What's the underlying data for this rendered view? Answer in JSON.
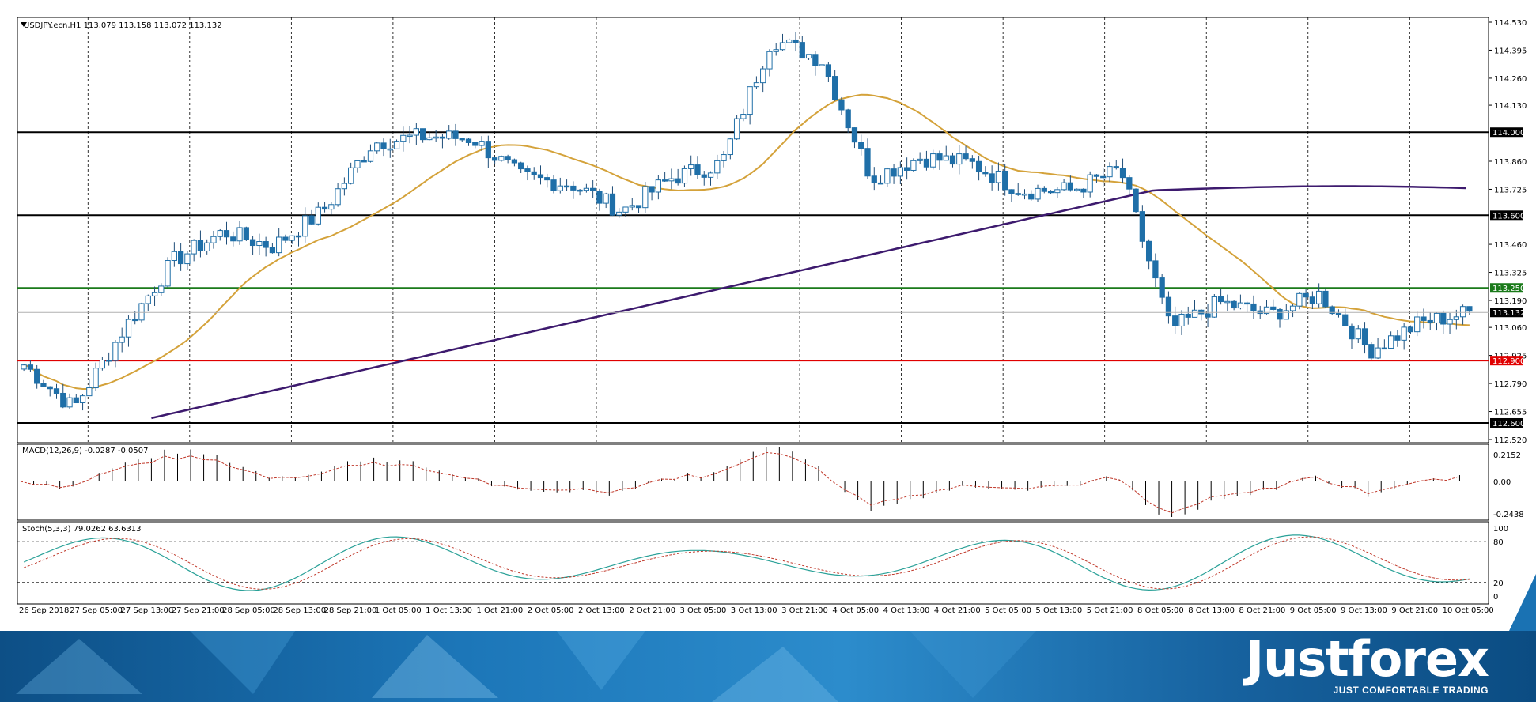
{
  "main_chart": {
    "title": "USDJPY.ecn,H1  113.079 113.158 113.072 113.132",
    "price_axis": [
      "114.530",
      "114.395",
      "114.260",
      "114.130",
      "113.860",
      "113.725",
      "113.460",
      "113.325",
      "113.190",
      "113.060",
      "112.925",
      "112.790",
      "112.655",
      "112.520"
    ],
    "levels": [
      {
        "value": 114.0,
        "label": "114.000",
        "color": "#000000"
      },
      {
        "value": 113.6,
        "label": "113.600",
        "color": "#000000"
      },
      {
        "value": 113.25,
        "label": "113.250",
        "color": "#1a7a1a"
      },
      {
        "value": 112.9,
        "label": "112.900",
        "color": "#e00000"
      },
      {
        "value": 112.6,
        "label": "112.600",
        "color": "#000000"
      }
    ],
    "current_price": {
      "value": 113.132,
      "label": "113.132"
    },
    "colors": {
      "bull": "#1f6fa8",
      "ma_fast": "#d4a23a",
      "ma_slow": "#3d1a6e",
      "grid": "#000000"
    }
  },
  "macd": {
    "title": "MACD(12,26,9) -0.0287 -0.0507",
    "axis": [
      "0.2152",
      "0.00",
      "-0.2438"
    ]
  },
  "stoch": {
    "title": "Stoch(5,3,3) 79.0262 63.6313",
    "axis": [
      "100",
      "80",
      "20",
      "0"
    ],
    "colors": {
      "main": "#2aa198",
      "signal": "#c0392b"
    }
  },
  "time_axis": [
    "26 Sep 2018",
    "27 Sep 05:00",
    "27 Sep 13:00",
    "27 Sep 21:00",
    "28 Sep 05:00",
    "28 Sep 13:00",
    "28 Sep 21:00",
    "1 Oct 05:00",
    "1 Oct 13:00",
    "1 Oct 21:00",
    "2 Oct 05:00",
    "2 Oct 13:00",
    "2 Oct 21:00",
    "3 Oct 05:00",
    "3 Oct 13:00",
    "3 Oct 21:00",
    "4 Oct 05:00",
    "4 Oct 13:00",
    "4 Oct 21:00",
    "5 Oct 05:00",
    "5 Oct 13:00",
    "5 Oct 21:00",
    "8 Oct 05:00",
    "8 Oct 13:00",
    "8 Oct 21:00",
    "9 Oct 05:00",
    "9 Oct 13:00",
    "9 Oct 21:00",
    "10 Oct 05:00"
  ],
  "brand": {
    "name": "Justforex",
    "tagline": "JUST COMFORTABLE TRADING"
  },
  "chart_data": {
    "type": "candlestick",
    "symbol": "USDJPY.ecn",
    "timeframe": "H1",
    "ohlc_latest": {
      "open": 113.079,
      "high": 113.158,
      "low": 113.072,
      "close": 113.132
    },
    "close_path": [
      [
        "26 Sep 2018",
        112.88
      ],
      [
        "27 Sep 05:00",
        112.67
      ],
      [
        "27 Sep 13:00",
        113.05
      ],
      [
        "27 Sep 21:00",
        113.38
      ],
      [
        "28 Sep 05:00",
        113.52
      ],
      [
        "28 Sep 13:00",
        113.45
      ],
      [
        "28 Sep 21:00",
        113.62
      ],
      [
        "1 Oct 05:00",
        113.95
      ],
      [
        "1 Oct 13:00",
        113.98
      ],
      [
        "1 Oct 21:00",
        113.97
      ],
      [
        "2 Oct 05:00",
        113.78
      ],
      [
        "2 Oct 13:00",
        113.75
      ],
      [
        "2 Oct 21:00",
        113.62
      ],
      [
        "3 Oct 05:00",
        113.78
      ],
      [
        "3 Oct 13:00",
        113.85
      ],
      [
        "3 Oct 21:00",
        114.45
      ],
      [
        "4 Oct 05:00",
        114.35
      ],
      [
        "4 Oct 13:00",
        113.78
      ],
      [
        "4 Oct 21:00",
        113.88
      ],
      [
        "5 Oct 05:00",
        113.85
      ],
      [
        "5 Oct 13:00",
        113.72
      ],
      [
        "5 Oct 21:00",
        113.72
      ],
      [
        "8 Oct 05:00",
        113.82
      ],
      [
        "8 Oct 13:00",
        113.05
      ],
      [
        "8 Oct 21:00",
        113.18
      ],
      [
        "9 Oct 05:00",
        113.12
      ],
      [
        "9 Oct 13:00",
        113.22
      ],
      [
        "9 Oct 21:00",
        112.95
      ],
      [
        "10 Oct 05:00",
        113.08
      ],
      [
        "10 Oct 08:00",
        113.132
      ]
    ],
    "ylim": [
      112.52,
      114.53
    ],
    "macd_params": "12,26,9",
    "macd_values": [
      -0.0287,
      -0.0507
    ],
    "stoch_params": "5,3,3",
    "stoch_values": [
      79.0262,
      63.6313
    ],
    "levels": [
      114.0,
      113.6,
      113.25,
      112.9,
      112.6
    ]
  }
}
